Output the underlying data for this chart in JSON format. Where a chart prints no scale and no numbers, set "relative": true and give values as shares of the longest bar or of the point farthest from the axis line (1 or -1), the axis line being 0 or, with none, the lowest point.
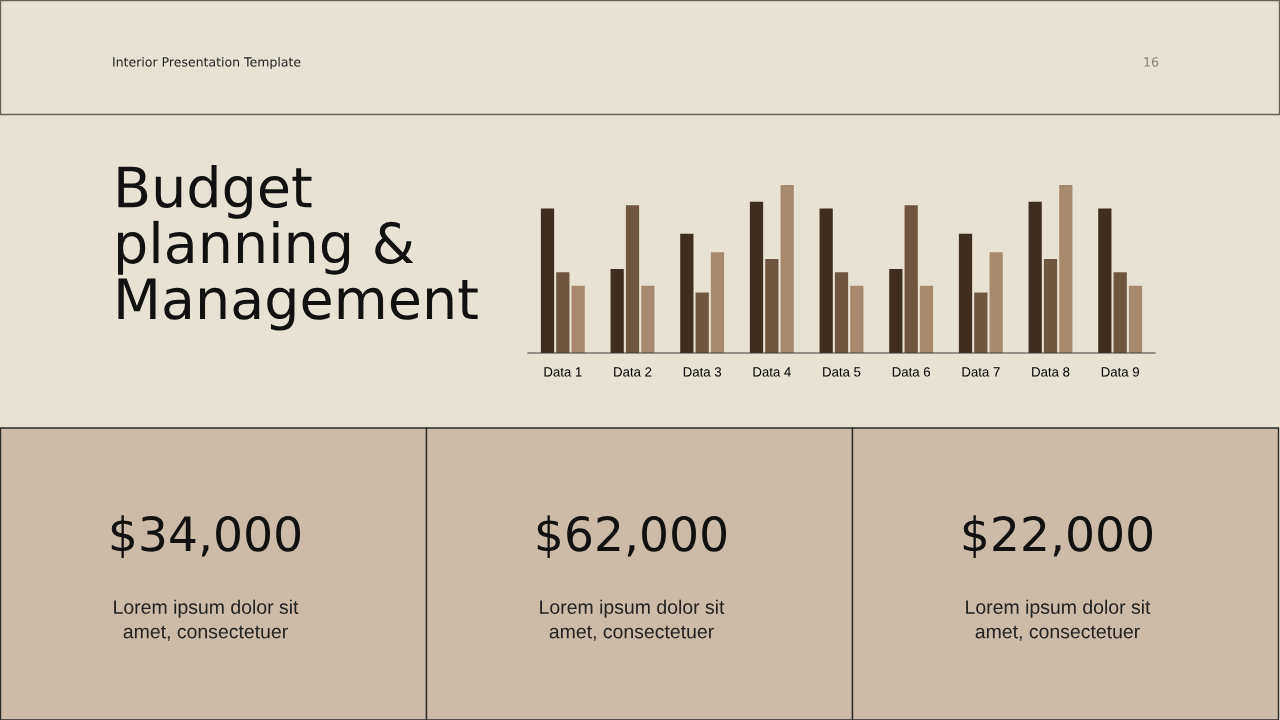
{
  "chart_data": [
    {
      "type": "bar",
      "title": "Budget\nplanning &\nManagement",
      "relative": true,
      "annotations": [
        "Interior Presentation Template",
        "16"
      ],
      "categories": [
        "Data 1",
        "Data 2",
        "Data 3",
        "Data 4",
        "Data 5",
        "Data 6",
        "Data 7",
        "Data 8",
        "Data 9"
      ],
      "series": [
        {
          "color": "#3f2d20",
          "values": [
            0.86,
            0.5,
            0.71,
            0.9,
            0.86,
            0.5,
            0.71,
            0.9,
            0.86
          ]
        },
        {
          "color": "#6e5640",
          "values": [
            0.48,
            0.88,
            0.36,
            0.56,
            0.48,
            0.88,
            0.36,
            0.56,
            0.48
          ]
        },
        {
          "color": "#a78a6e",
          "values": [
            0.4,
            0.4,
            0.6,
            1,
            0.4,
            0.4,
            0.6,
            1,
            0.4
          ]
        }
      ]
    },
    {
      "type": "other",
      "title": "$34,000",
      "subtitle": "Lorem ipsum dolor sit\namet, consectetuer"
    },
    {
      "type": "other",
      "title": "$62,000",
      "subtitle": "Lorem ipsum dolor sit\namet, consectetuer"
    },
    {
      "type": "other",
      "title": "$22,000",
      "subtitle": "Lorem ipsum dolor sit\namet, consectetuer"
    }
  ]
}
